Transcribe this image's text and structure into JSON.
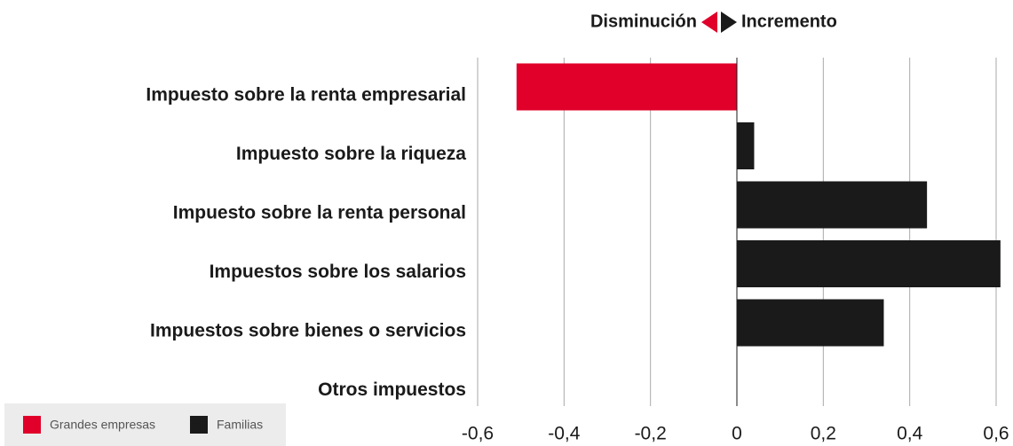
{
  "chart_data": {
    "type": "bar",
    "orientation": "horizontal",
    "header_left": "Disminución",
    "header_right": "Incremento",
    "categories": [
      "Impuesto sobre la renta empresarial",
      "Impuesto sobre la riqueza",
      "Impuesto sobre la renta personal",
      "Impuestos sobre los salarios",
      "Impuestos sobre bienes o servicios",
      "Otros impuestos"
    ],
    "series": [
      {
        "name": "Grandes empresas",
        "color": "#e0002a",
        "values": [
          -0.51,
          null,
          null,
          null,
          null,
          null
        ]
      },
      {
        "name": "Familias",
        "color": "#1a1a1a",
        "values": [
          null,
          0.04,
          0.44,
          0.61,
          0.34,
          0
        ]
      }
    ],
    "xlim": [
      -0.6,
      0.6
    ],
    "xticks": [
      {
        "value": -0.6,
        "label": "-0,6"
      },
      {
        "value": -0.4,
        "label": "-0,4"
      },
      {
        "value": -0.2,
        "label": "-0,2"
      },
      0,
      {
        "value": 0.2,
        "label": "0,2"
      },
      {
        "value": 0.4,
        "label": "0,4"
      },
      {
        "value": 0.6,
        "label": "0,6"
      }
    ],
    "grid": true,
    "legend": "bottom-left"
  }
}
